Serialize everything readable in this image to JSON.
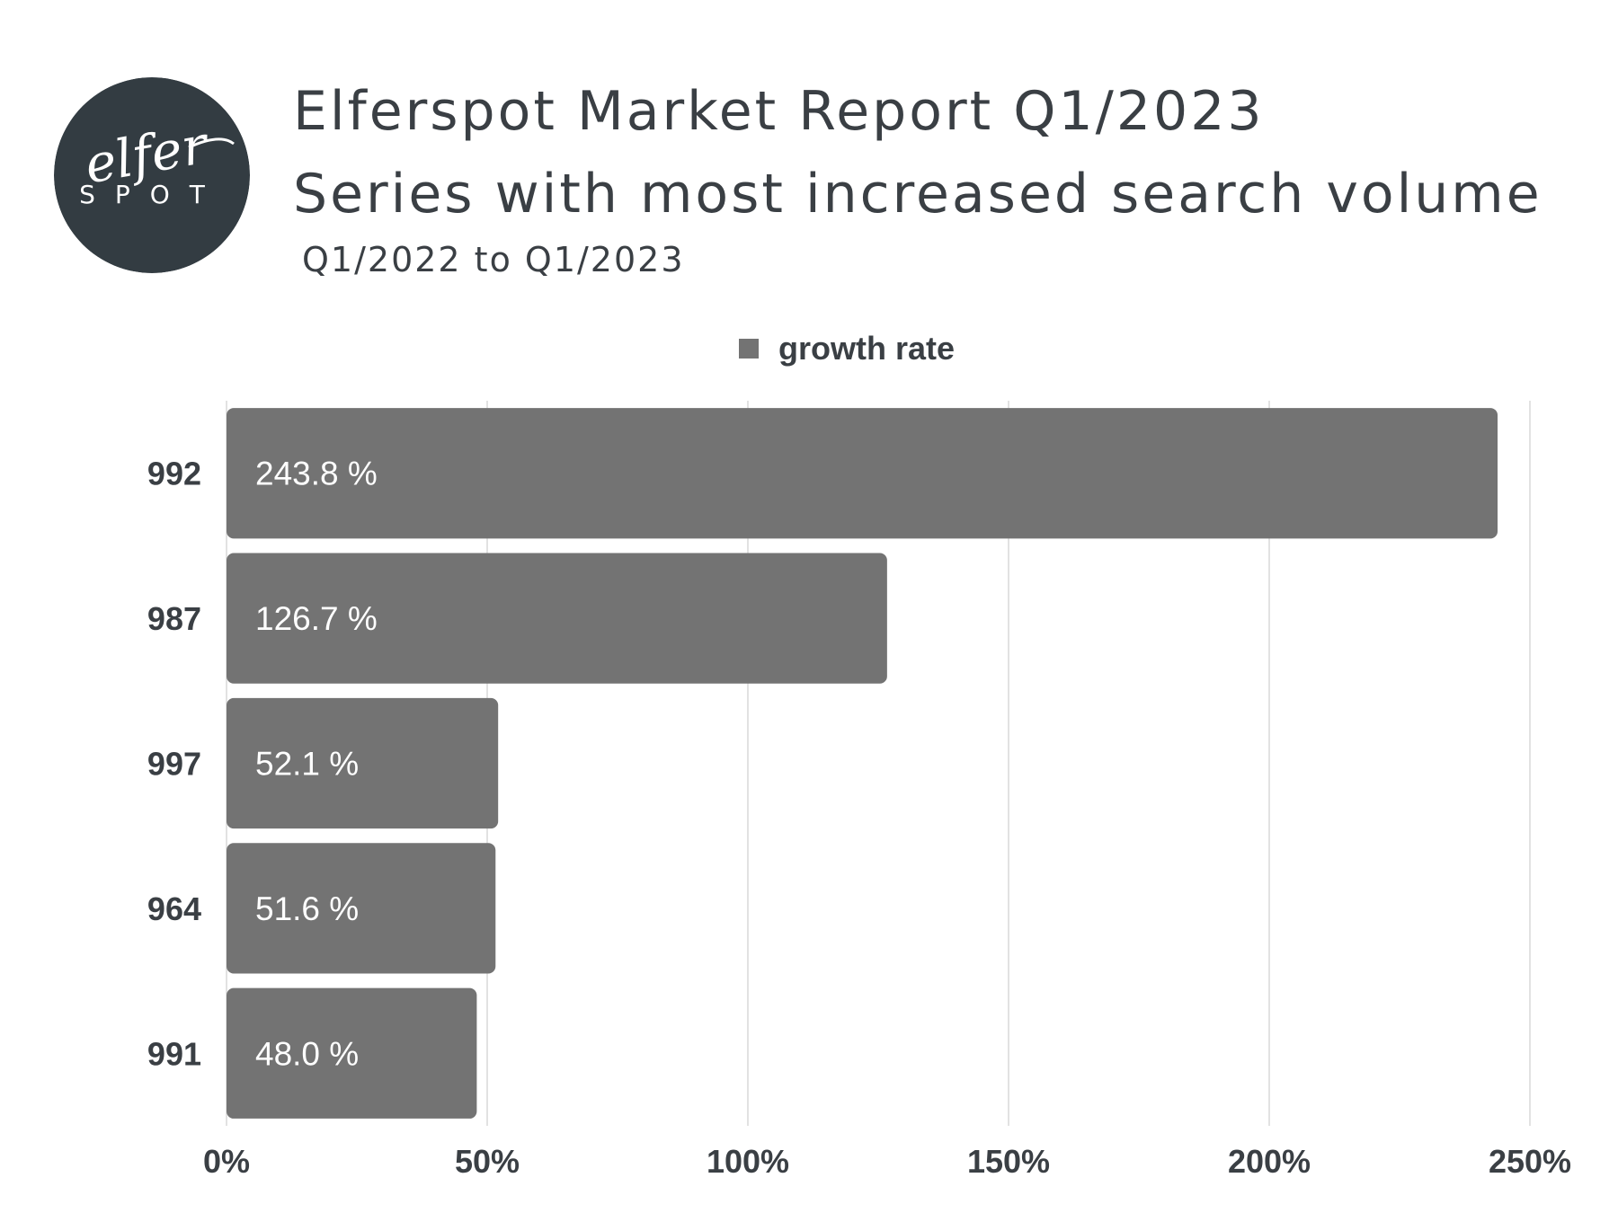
{
  "header": {
    "title": "Elferspot Market Report Q1/2023",
    "subtitle": "Series with most increased search volume",
    "period": "Q1/2022 to Q1/2023"
  },
  "logo": {
    "script_text": "elfer",
    "wordmark": "SPOT",
    "background_color": "#333c42",
    "text_color": "#ffffff"
  },
  "colors": {
    "bar": "#737373",
    "gridline": "#d9d9d9",
    "text": "#3a3f44",
    "bar_label": "#ffffff"
  },
  "chart_data": {
    "type": "bar",
    "orientation": "horizontal",
    "title": "Series with most increased search volume",
    "xlabel": "",
    "ylabel": "",
    "categories": [
      "992",
      "987",
      "997",
      "964",
      "991"
    ],
    "series": [
      {
        "name": "growth rate",
        "values": [
          243.8,
          126.7,
          52.1,
          51.6,
          48.0
        ],
        "labels": [
          "243.8 %",
          "126.7 %",
          "52.1 %",
          "51.6 %",
          "48.0 %"
        ]
      }
    ],
    "xlim": [
      0,
      250
    ],
    "x_ticks": [
      0,
      50,
      100,
      150,
      200,
      250
    ],
    "x_tick_labels": [
      "0%",
      "50%",
      "100%",
      "150%",
      "200%",
      "250%"
    ],
    "grid": "vertical",
    "legend_position": "top-center"
  }
}
